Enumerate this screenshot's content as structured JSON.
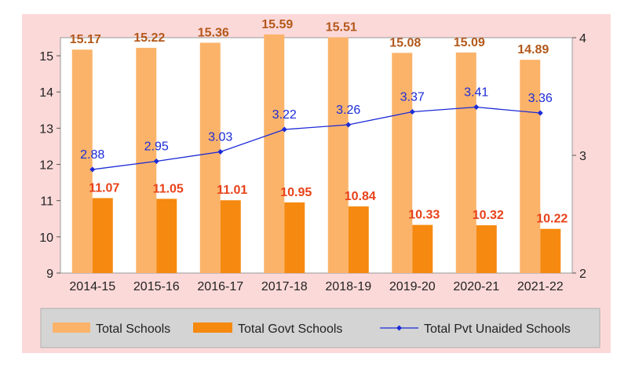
{
  "chart_data": {
    "type": "bar",
    "categories": [
      "2014-15",
      "2015-16",
      "2016-17",
      "2017-18",
      "2018-19",
      "2019-20",
      "2020-21",
      "2021-22"
    ],
    "series": [
      {
        "name": "Total Schools",
        "type": "bar",
        "axis": "left",
        "color": "#fbb36a",
        "label_color": "#b3581b",
        "values": [
          15.17,
          15.22,
          15.36,
          15.59,
          15.51,
          15.08,
          15.09,
          14.89
        ]
      },
      {
        "name": "Total Govt Schools",
        "type": "bar",
        "axis": "left",
        "color": "#f6890f",
        "label_color": "#e8421a",
        "values": [
          11.07,
          11.05,
          11.01,
          10.95,
          10.84,
          10.33,
          10.32,
          10.22
        ]
      },
      {
        "name": "Total Pvt Unaided Schools",
        "type": "line",
        "axis": "right",
        "color": "#1c2bd6",
        "label_color": "#1c2bd6",
        "values": [
          2.88,
          2.95,
          3.03,
          3.22,
          3.26,
          3.37,
          3.41,
          3.36
        ]
      }
    ],
    "left_axis": {
      "ylim": [
        9,
        15.5
      ],
      "ticks": [
        9,
        10,
        11,
        12,
        13,
        14,
        15
      ]
    },
    "right_axis": {
      "ylim": [
        2,
        4
      ],
      "ticks": [
        2,
        3,
        4
      ]
    },
    "legend_position": "bottom",
    "grid": false,
    "background": "#fcd9d9",
    "plot_background": "#ffffff"
  }
}
